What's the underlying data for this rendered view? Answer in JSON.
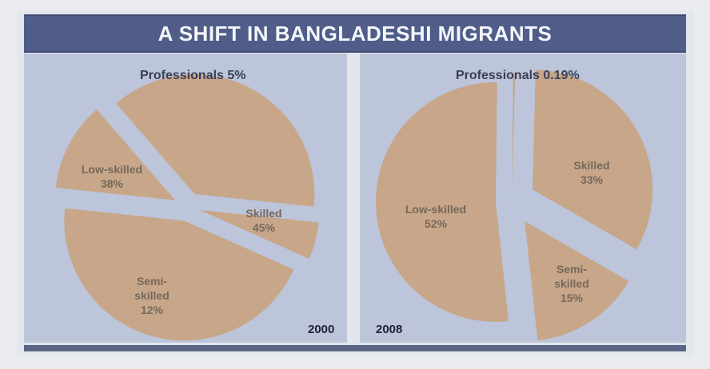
{
  "title": "A SHIFT IN BANGLADESHI MIGRANTS",
  "colors": {
    "title_bar": "#4f5d88",
    "panel_bg": "#bcc5d9",
    "slice": "#c7a68a",
    "gap": "#d3d9e6"
  },
  "chart_data": [
    {
      "type": "pie",
      "year": "2000",
      "callout": "Professionals 5%",
      "slices": [
        {
          "name": "Professionals",
          "value": 5,
          "label_lines": []
        },
        {
          "name": "Skilled",
          "value": 45,
          "label_lines": [
            "Skilled",
            "45%"
          ]
        },
        {
          "name": "Semi-skilled",
          "value": 12,
          "label_lines": [
            "Semi-",
            "skilled",
            "12%"
          ]
        },
        {
          "name": "Low-skilled",
          "value": 38,
          "label_lines": [
            "Low-skilled",
            "38%"
          ]
        }
      ]
    },
    {
      "type": "pie",
      "year": "2008",
      "callout": "Professionals 0.19%",
      "slices": [
        {
          "name": "Professionals",
          "value": 0.19,
          "label_lines": []
        },
        {
          "name": "Skilled",
          "value": 33,
          "label_lines": [
            "Skilled",
            "33%"
          ]
        },
        {
          "name": "Semi-skilled",
          "value": 15,
          "label_lines": [
            "Semi-",
            "skilled",
            "15%"
          ]
        },
        {
          "name": "Low-skilled",
          "value": 52,
          "label_lines": [
            "Low-skilled",
            "52%"
          ]
        }
      ]
    }
  ]
}
